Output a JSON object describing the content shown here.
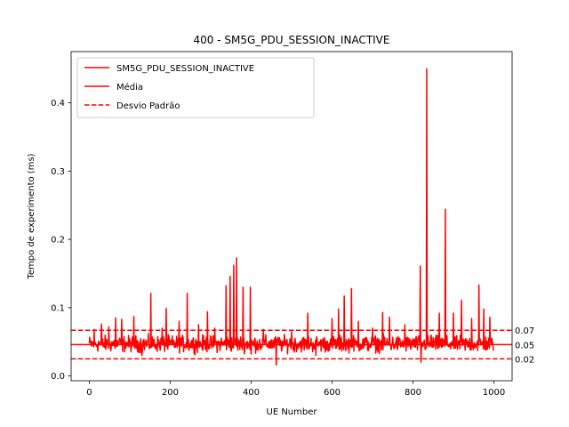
{
  "chart_data": {
    "type": "line",
    "title": "400 - SM5G_PDU_SESSION_INACTIVE",
    "xlabel": "UE Number",
    "ylabel": "Tempo de experimento (ms)",
    "xlim": [
      -45,
      1045
    ],
    "ylim": [
      -0.007,
      0.475
    ],
    "xticks": [
      0,
      200,
      400,
      600,
      800,
      1000
    ],
    "yticks": [
      0.0,
      0.1,
      0.2,
      0.3,
      0.4
    ],
    "xtick_labels": [
      "0",
      "200",
      "400",
      "600",
      "800",
      "1000"
    ],
    "ytick_labels": [
      "0.0",
      "0.1",
      "0.2",
      "0.3",
      "0.4"
    ],
    "grid": false,
    "legend_position": "top-left",
    "color": "#ff0000",
    "series": [
      {
        "name": "SM5G_PDU_SESSION_INACTIVE",
        "style": "solid",
        "n_points": 1000,
        "baseline": 0.046,
        "noise_range": [
          0.03,
          0.064
        ],
        "spikes": [
          {
            "x": 12,
            "y": 0.068
          },
          {
            "x": 30,
            "y": 0.076
          },
          {
            "x": 48,
            "y": 0.072
          },
          {
            "x": 65,
            "y": 0.085
          },
          {
            "x": 80,
            "y": 0.083
          },
          {
            "x": 110,
            "y": 0.087
          },
          {
            "x": 130,
            "y": 0.03
          },
          {
            "x": 152,
            "y": 0.121
          },
          {
            "x": 180,
            "y": 0.07
          },
          {
            "x": 190,
            "y": 0.099
          },
          {
            "x": 222,
            "y": 0.08
          },
          {
            "x": 242,
            "y": 0.121
          },
          {
            "x": 270,
            "y": 0.075
          },
          {
            "x": 292,
            "y": 0.094
          },
          {
            "x": 310,
            "y": 0.07
          },
          {
            "x": 338,
            "y": 0.132
          },
          {
            "x": 348,
            "y": 0.146
          },
          {
            "x": 357,
            "y": 0.162
          },
          {
            "x": 364,
            "y": 0.173
          },
          {
            "x": 380,
            "y": 0.13
          },
          {
            "x": 398,
            "y": 0.13
          },
          {
            "x": 430,
            "y": 0.068
          },
          {
            "x": 462,
            "y": 0.016
          },
          {
            "x": 500,
            "y": 0.065
          },
          {
            "x": 540,
            "y": 0.092
          },
          {
            "x": 560,
            "y": 0.1
          },
          {
            "x": 600,
            "y": 0.084
          },
          {
            "x": 616,
            "y": 0.098
          },
          {
            "x": 630,
            "y": 0.117
          },
          {
            "x": 648,
            "y": 0.128
          },
          {
            "x": 665,
            "y": 0.08
          },
          {
            "x": 700,
            "y": 0.07
          },
          {
            "x": 725,
            "y": 0.093
          },
          {
            "x": 742,
            "y": 0.086
          },
          {
            "x": 780,
            "y": 0.075
          },
          {
            "x": 818,
            "y": 0.161
          },
          {
            "x": 834,
            "y": 0.45
          },
          {
            "x": 845,
            "y": 0.06
          },
          {
            "x": 865,
            "y": 0.092
          },
          {
            "x": 880,
            "y": 0.244
          },
          {
            "x": 900,
            "y": 0.092
          },
          {
            "x": 920,
            "y": 0.111
          },
          {
            "x": 945,
            "y": 0.084
          },
          {
            "x": 963,
            "y": 0.133
          },
          {
            "x": 975,
            "y": 0.098
          },
          {
            "x": 990,
            "y": 0.086
          },
          {
            "x": 400,
            "y": 0.032
          },
          {
            "x": 820,
            "y": 0.02
          },
          {
            "x": 560,
            "y": 0.03
          }
        ]
      },
      {
        "name": "Média",
        "style": "solid",
        "value": 0.046
      },
      {
        "name": "Desvio Padrão",
        "style": "dashed",
        "values": [
          0.067,
          0.025
        ]
      }
    ],
    "ref_labels": [
      {
        "value": 0.067,
        "text": "0.07"
      },
      {
        "value": 0.046,
        "text": "0.05"
      },
      {
        "value": 0.025,
        "text": "0.02"
      }
    ]
  }
}
